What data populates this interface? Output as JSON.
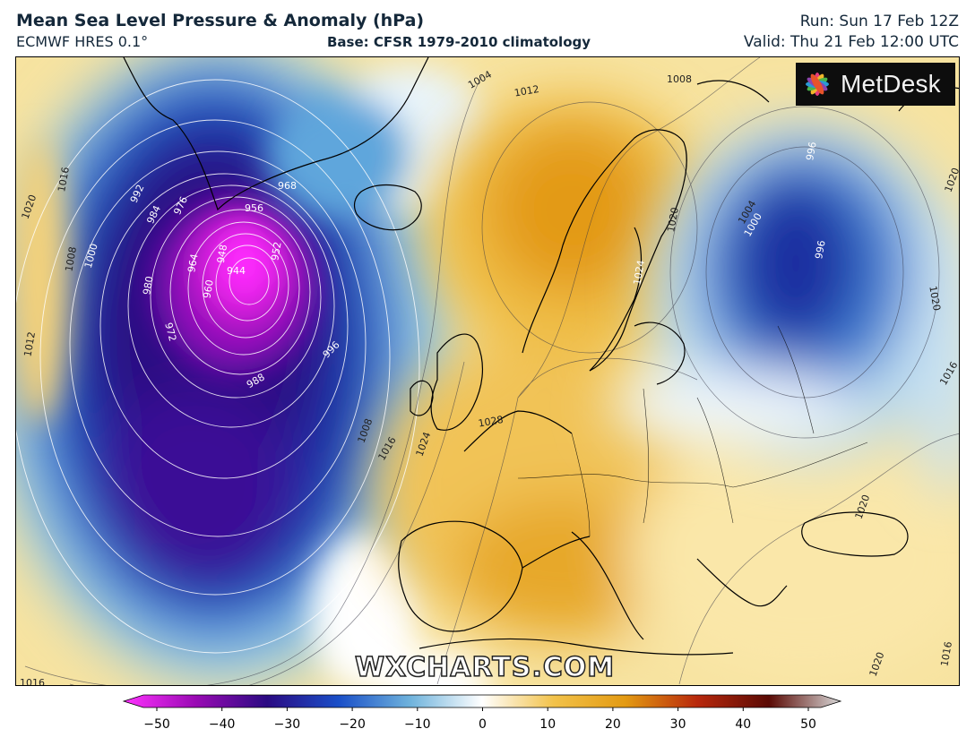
{
  "header": {
    "title": "Mean Sea Level Pressure & Anomaly (hPa)",
    "model": "ECMWF HRES 0.1°",
    "base": "Base: CFSR 1979-2010 climatology",
    "run": "Run: Sun 17 Feb 12Z",
    "valid": "Valid: Thu 21 Feb 12:00 UTC"
  },
  "logo": {
    "text": "MetDesk",
    "icon": "metdesk-flower-icon"
  },
  "watermark": "WXCHARTS.COM",
  "colorbar": {
    "min": -50,
    "max": 50,
    "ticks": [
      "−50",
      "−40",
      "−30",
      "−20",
      "−10",
      "0",
      "10",
      "20",
      "30",
      "40",
      "50"
    ],
    "colors": {
      "neg50": "#ff33ff",
      "neg40": "#9a0ab4",
      "neg30": "#2a0a82",
      "neg20": "#1a4fc8",
      "neg10": "#6fb3dc",
      "zero": "#ffffff",
      "pos10": "#f2c24a",
      "pos20": "#e39a12",
      "pos30": "#b8280c",
      "pos40": "#5a0a04",
      "pos50": "#d8d8d8"
    }
  },
  "isobar_labels": [
    {
      "id": "l944",
      "text": "944"
    },
    {
      "id": "l948",
      "text": "948"
    },
    {
      "id": "l952",
      "text": "952"
    },
    {
      "id": "l956",
      "text": "956"
    },
    {
      "id": "l960",
      "text": "960"
    },
    {
      "id": "l964",
      "text": "964"
    },
    {
      "id": "l968",
      "text": "968"
    },
    {
      "id": "l972",
      "text": "972"
    },
    {
      "id": "l976",
      "text": "976"
    },
    {
      "id": "l980",
      "text": "980"
    },
    {
      "id": "l984",
      "text": "984"
    },
    {
      "id": "l988",
      "text": "988"
    },
    {
      "id": "l992",
      "text": "992"
    },
    {
      "id": "l996",
      "text": "996"
    },
    {
      "id": "l1000",
      "text": "1000"
    },
    {
      "id": "l1008a",
      "text": "1008"
    },
    {
      "id": "l1008b",
      "text": "1008"
    },
    {
      "id": "l1008c",
      "text": "1008"
    },
    {
      "id": "l1012a",
      "text": "1012"
    },
    {
      "id": "l1012b",
      "text": "1012"
    },
    {
      "id": "l1016a",
      "text": "1016"
    },
    {
      "id": "l1016b",
      "text": "1016"
    },
    {
      "id": "l1016c",
      "text": "1016"
    },
    {
      "id": "l1016d",
      "text": "1016"
    },
    {
      "id": "l1016e",
      "text": "1016"
    },
    {
      "id": "l1020a",
      "text": "1020"
    },
    {
      "id": "l1020b",
      "text": "1020"
    },
    {
      "id": "l1020c",
      "text": "1020"
    },
    {
      "id": "l1020d",
      "text": "1020"
    },
    {
      "id": "l1020e",
      "text": "1020"
    },
    {
      "id": "l1020f",
      "text": "1020"
    },
    {
      "id": "l1024",
      "text": "1024"
    },
    {
      "id": "l1028",
      "text": "1028"
    },
    {
      "id": "l1004a",
      "text": "1004"
    },
    {
      "id": "l1004b",
      "text": "1004"
    },
    {
      "id": "l1000b",
      "text": "1000"
    },
    {
      "id": "l996b",
      "text": "996"
    },
    {
      "id": "l996c",
      "text": "996"
    },
    {
      "id": "l1024b",
      "text": "1024"
    }
  ]
}
